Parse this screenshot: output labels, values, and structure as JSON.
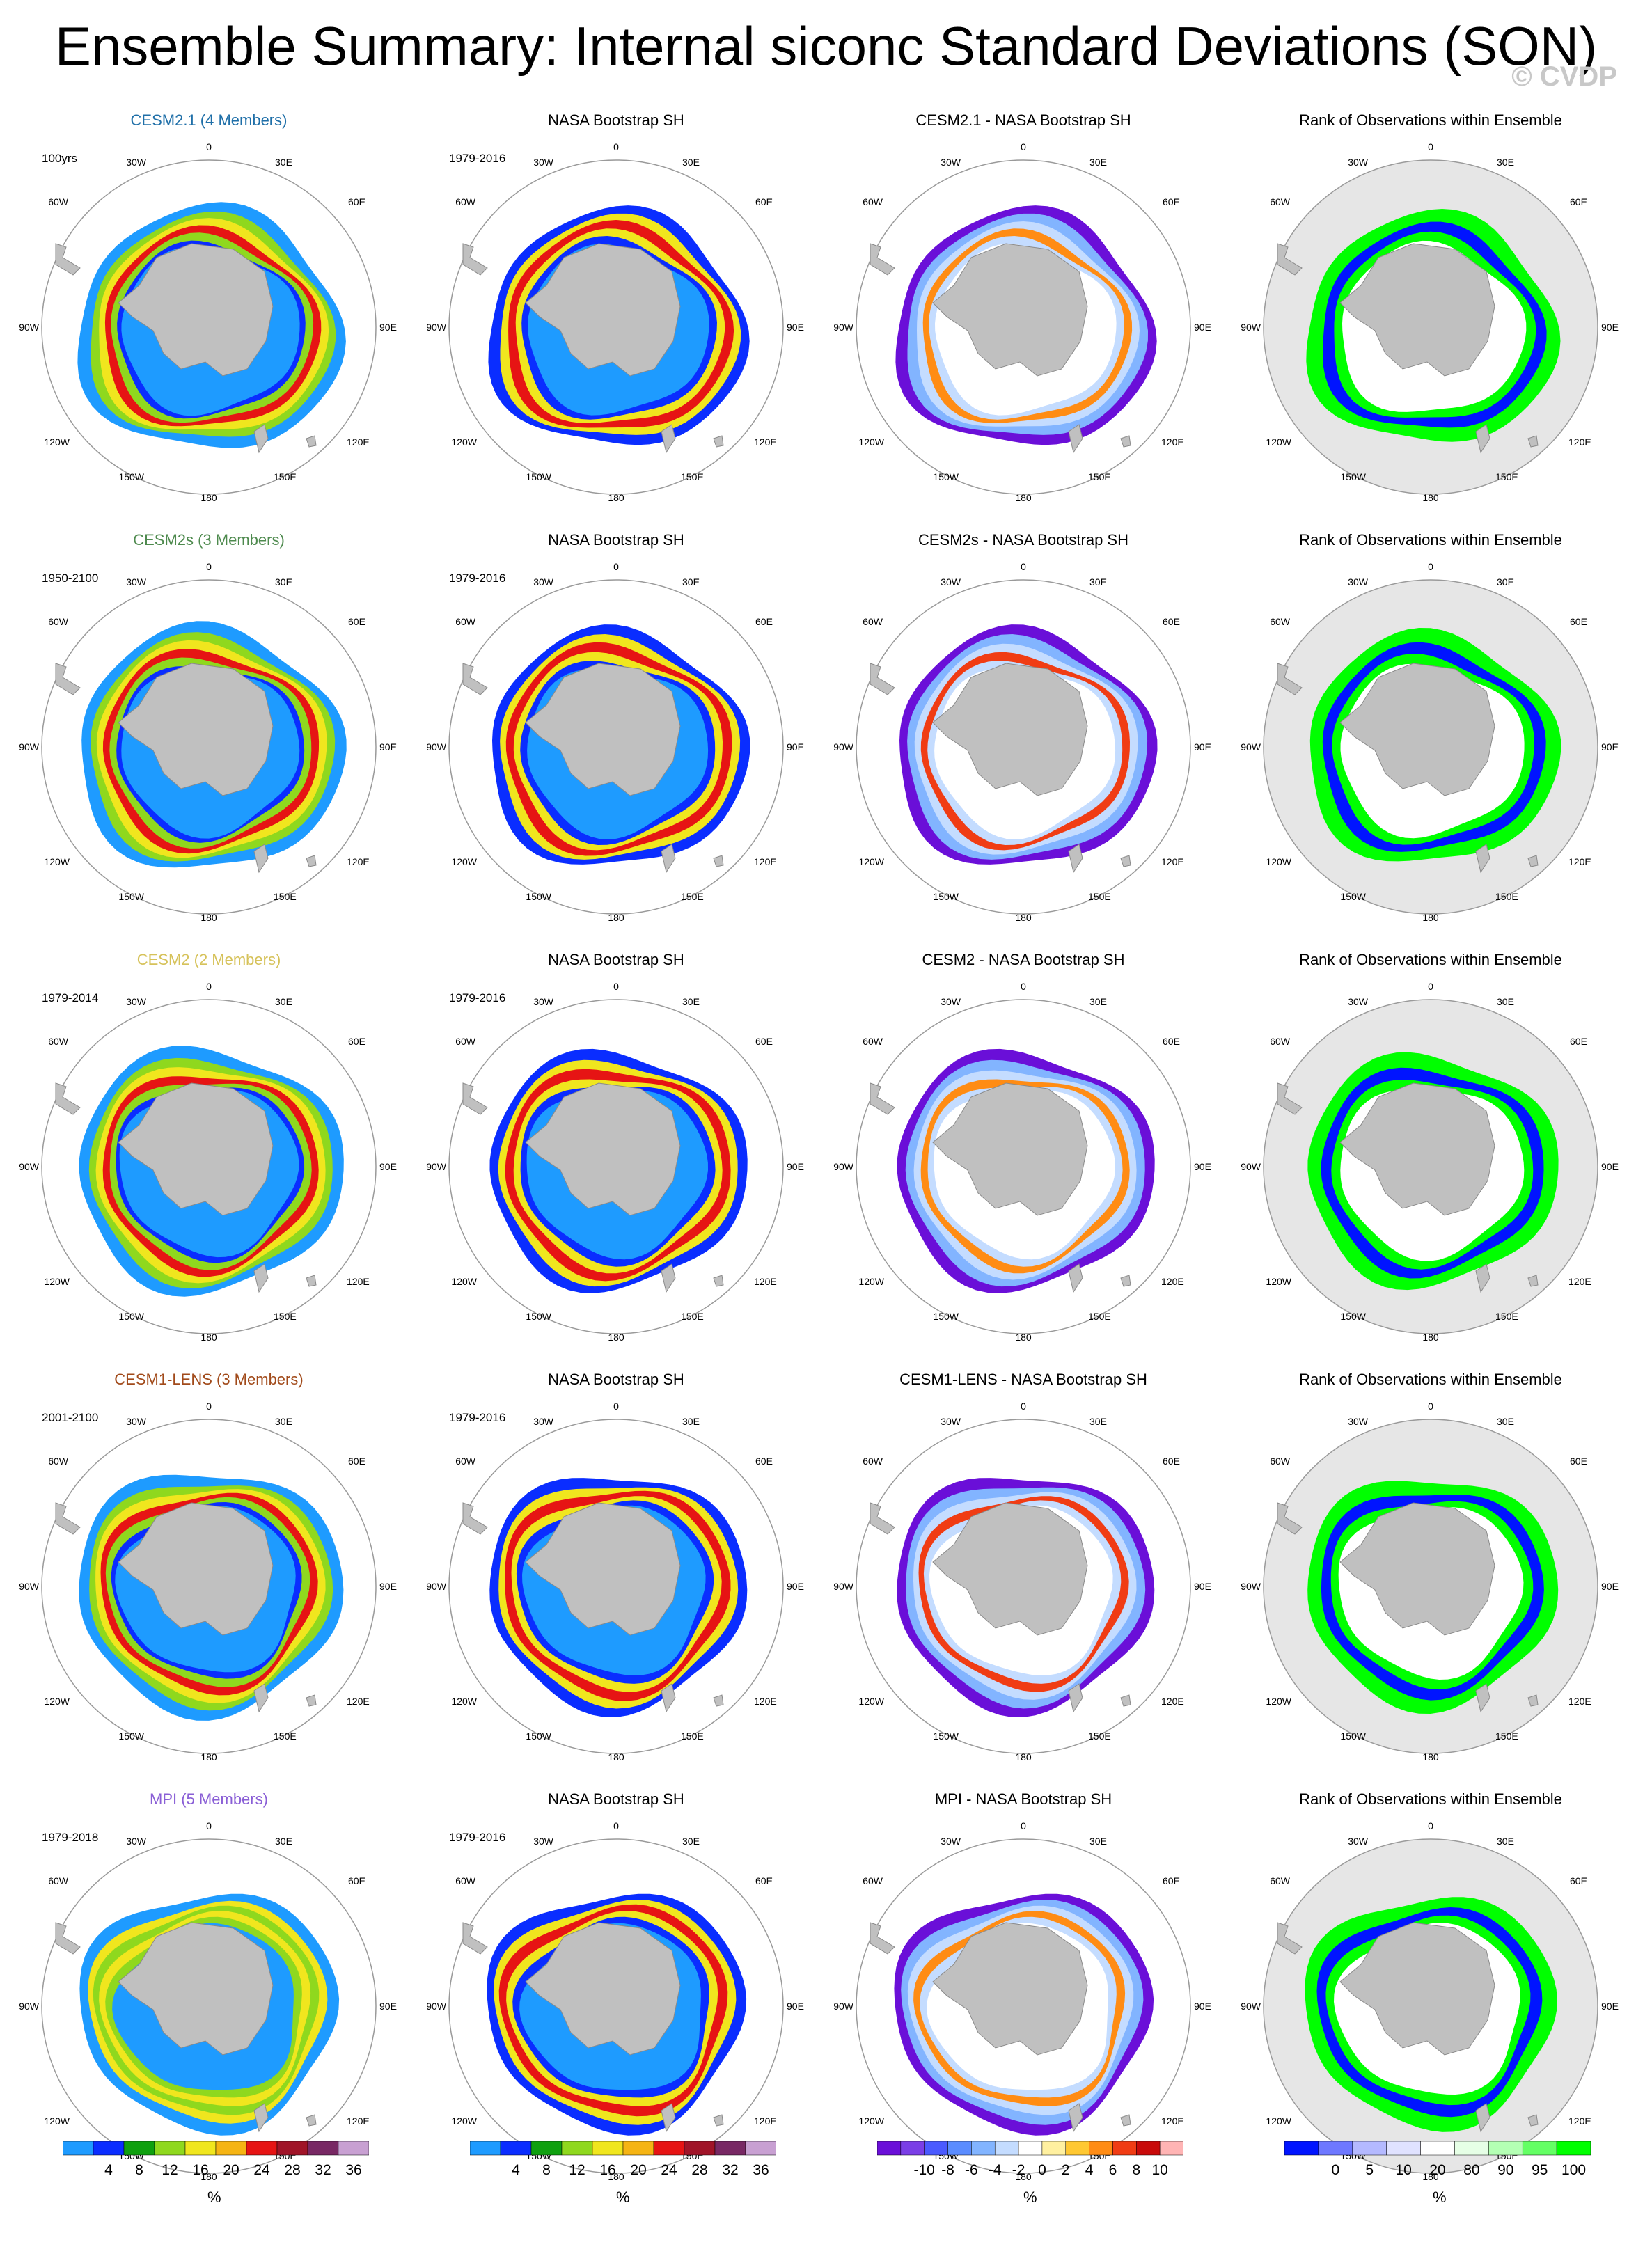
{
  "title": "Ensemble Summary: Internal siconc Standard Deviations (SON)",
  "watermark": "© CVDP",
  "rows": [
    {
      "model": "CESM2.1 (4 Members)",
      "color": "#1f6fa8",
      "period": "100yrs",
      "diff_title": "CESM2.1 - NASA Bootstrap SH"
    },
    {
      "model": "CESM2s (3 Members)",
      "color": "#4e8a4e",
      "period": "1950-2100",
      "diff_title": "CESM2s - NASA Bootstrap SH"
    },
    {
      "model": "CESM2 (2 Members)",
      "color": "#d6c25a",
      "period": "1979-2014",
      "diff_title": "CESM2 - NASA Bootstrap SH"
    },
    {
      "model": "CESM1-LENS (3 Members)",
      "color": "#a14a1a",
      "period": "2001-2100",
      "diff_title": "CESM1-LENS - NASA Bootstrap SH"
    },
    {
      "model": "MPI (5 Members)",
      "color": "#8a5fd6",
      "period": "1979-2018",
      "diff_title": "MPI - NASA Bootstrap SH"
    }
  ],
  "obs_title": "NASA Bootstrap SH",
  "obs_period": "1979-2016",
  "rank_title": "Rank of Observations within Ensemble",
  "lon_labels": {
    "n": "0",
    "ne1": "30E",
    "ne2": "60E",
    "e": "90E",
    "se1": "120E",
    "se2": "150E",
    "s": "180",
    "sw1": "150W",
    "sw2": "120W",
    "w": "90W",
    "nw1": "60W",
    "nw2": "30W"
  },
  "colorbars": {
    "std": {
      "labels": [
        "4",
        "8",
        "12",
        "16",
        "20",
        "24",
        "28",
        "32",
        "36"
      ],
      "unit": "%",
      "colors": [
        "#1e9bff",
        "#0a2dff",
        "#0fa00f",
        "#8fd81e",
        "#f0e61e",
        "#f5b414",
        "#e61414",
        "#a01428",
        "#782864",
        "#c8a0d2"
      ]
    },
    "diff": {
      "labels": [
        "-10",
        "-8",
        "-6",
        "-4",
        "-2",
        "0",
        "2",
        "4",
        "6",
        "8",
        "10"
      ],
      "unit": "%",
      "colors": [
        "#6a0fd8",
        "#7a3ee6",
        "#4a5aff",
        "#5a8cff",
        "#82b4ff",
        "#c4dcff",
        "#ffffff",
        "#fff0a0",
        "#ffc832",
        "#ff8c14",
        "#f03c14",
        "#c80a0a",
        "#ffb4b4"
      ]
    },
    "rank": {
      "labels": [
        "0",
        "5",
        "10",
        "20",
        "80",
        "90",
        "95",
        "100"
      ],
      "unit": "%",
      "colors": [
        "#0014ff",
        "#6e78ff",
        "#b4b9ff",
        "#e0e2ff",
        "#ffffff",
        "#e6ffe6",
        "#b4ffb4",
        "#64ff64",
        "#00ff00"
      ]
    }
  }
}
